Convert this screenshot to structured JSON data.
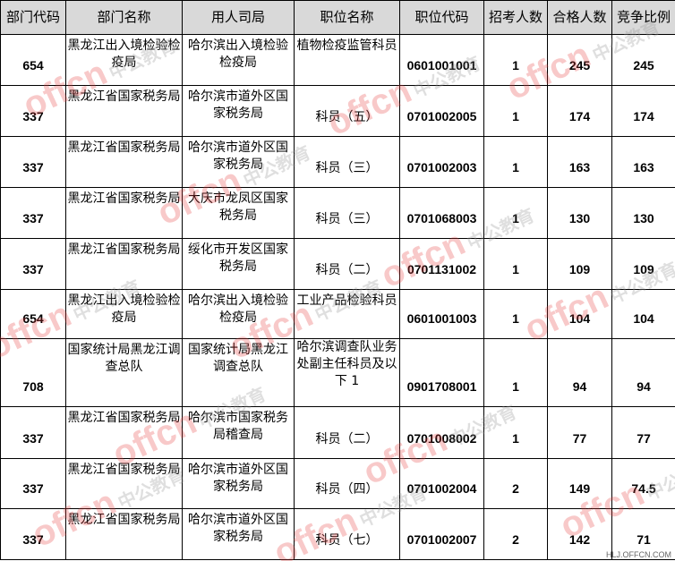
{
  "headers": [
    "部门代码",
    "部门名称",
    "用人司局",
    "职位名称",
    "职位代码",
    "招考人数",
    "合格人数",
    "竞争比例"
  ],
  "rows": [
    [
      "654",
      "黑龙江出入境检验检疫局",
      "哈尔滨出入境检验检疫局",
      "植物检疫监管科员",
      "0601001001",
      "1",
      "245",
      "245"
    ],
    [
      "337",
      "黑龙江省国家税务局",
      "哈尔滨市道外区国家税务局",
      "科员（五）",
      "0701002005",
      "1",
      "174",
      "174"
    ],
    [
      "337",
      "黑龙江省国家税务局",
      "哈尔滨市道外区国家税务局",
      "科员（三）",
      "0701002003",
      "1",
      "163",
      "163"
    ],
    [
      "337",
      "黑龙江省国家税务局",
      "大庆市龙凤区国家税务局",
      "科员（三）",
      "0701068003",
      "1",
      "130",
      "130"
    ],
    [
      "337",
      "黑龙江省国家税务局",
      "绥化市开发区国家税务局",
      "科员（二）",
      "0701131002",
      "1",
      "109",
      "109"
    ],
    [
      "654",
      "黑龙江出入境检验检疫局",
      "哈尔滨出入境检验检疫局",
      "工业产品检验科员",
      "0601001003",
      "1",
      "104",
      "104"
    ],
    [
      "708",
      "国家统计局黑龙江调查总队",
      "国家统计局黑龙江调查总队",
      "哈尔滨调查队业务处副主任科员及以下 1",
      "0901708001",
      "1",
      "94",
      "94"
    ],
    [
      "337",
      "黑龙江省国家税务局",
      "哈尔滨市国家税务局稽查局",
      "科员（二）",
      "0701008002",
      "1",
      "77",
      "77"
    ],
    [
      "337",
      "黑龙江省国家税务局",
      "哈尔滨市道外区国家税务局",
      "科员（四）",
      "0701002004",
      "2",
      "149",
      "74.5"
    ],
    [
      "337",
      "黑龙江省国家税务局",
      "哈尔滨市道外区国家税务局",
      "科员（七）",
      "0701002007",
      "2",
      "142",
      "71"
    ]
  ],
  "watermark": {
    "brand": "offcn",
    "cn": "中公教育"
  },
  "footer_url": "HLJ.OFFCN.COM"
}
